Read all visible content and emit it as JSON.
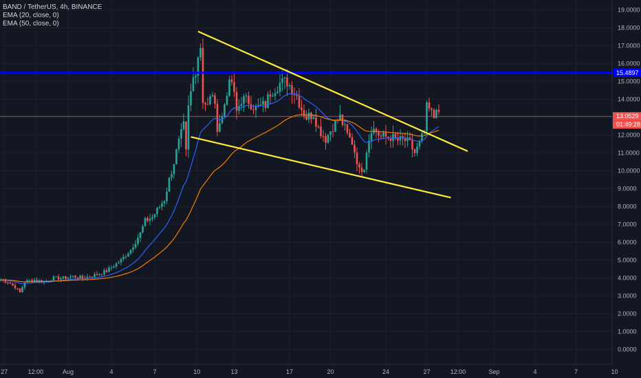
{
  "header": {
    "symbol": "BAND / TetherUS, 4h, BINANCE",
    "indicators": [
      "EMA (20, close, 0)",
      "EMA (50, close, 0)"
    ]
  },
  "price_badges": {
    "level": "15.4897",
    "last": "13.0529",
    "countdown": "01:49:28"
  },
  "colors": {
    "background": "#131722",
    "up": "#26a69a",
    "down": "#ef5350",
    "ema20": "#2962ff",
    "ema50": "#f57c00",
    "trendline": "#ffeb3b",
    "level_line": "#0000ff"
  },
  "chart_data": {
    "type": "candlestick",
    "y_axis": {
      "range": [
        -0.4,
        19.5
      ],
      "tick_labels": [
        "0.0000",
        "1.0000",
        "2.0000",
        "3.0000",
        "4.0000",
        "5.0000",
        "6.0000",
        "7.0000",
        "8.0000",
        "9.0000",
        "10.0000",
        "11.0000",
        "12.0000",
        "13.0000",
        "14.0000",
        "15.0000",
        "16.0000",
        "17.0000",
        "18.0000",
        "19.0000"
      ]
    },
    "x_axis": {
      "tick_labels": [
        "27",
        "12:00",
        "Aug",
        "4",
        "7",
        "10",
        "13",
        "17",
        "20",
        "24",
        "27",
        "12:00",
        "Sep",
        "4",
        "7",
        "10"
      ],
      "tick_index": [
        1.5,
        14.5,
        28,
        46,
        64,
        81.5,
        97,
        120,
        137,
        160,
        177,
        190,
        205,
        222,
        239,
        255
      ]
    },
    "series": [
      {
        "name": "EMA (20, close, 0)",
        "role": "ema20"
      },
      {
        "name": "EMA (50, close, 0)",
        "role": "ema50"
      }
    ],
    "close_path": [
      [
        0,
        3.9
      ],
      [
        3,
        3.8
      ],
      [
        6,
        3.5
      ],
      [
        8,
        3.2
      ],
      [
        10,
        3.8
      ],
      [
        14,
        3.9
      ],
      [
        18,
        3.8
      ],
      [
        22,
        4.0
      ],
      [
        26,
        4.0
      ],
      [
        30,
        4.1
      ],
      [
        34,
        4.0
      ],
      [
        40,
        4.2
      ],
      [
        44,
        4.4
      ],
      [
        46,
        4.6
      ],
      [
        50,
        5.0
      ],
      [
        54,
        5.6
      ],
      [
        58,
        6.5
      ],
      [
        60,
        7.2
      ],
      [
        63,
        7.4
      ],
      [
        66,
        8.0
      ],
      [
        68,
        8.4
      ],
      [
        70,
        9.5
      ],
      [
        72,
        10.5
      ],
      [
        74,
        11.6
      ],
      [
        76,
        12.5
      ],
      [
        77,
        11.0
      ],
      [
        78,
        13.5
      ],
      [
        80,
        15.2
      ],
      [
        81,
        15.7
      ],
      [
        82,
        16.5
      ],
      [
        83,
        17.0
      ],
      [
        84,
        14.0
      ],
      [
        86,
        13.6
      ],
      [
        88,
        14.4
      ],
      [
        90,
        12.5
      ],
      [
        92,
        13.0
      ],
      [
        94,
        14.5
      ],
      [
        96,
        15.0
      ],
      [
        98,
        13.3
      ],
      [
        100,
        14.0
      ],
      [
        103,
        13.9
      ],
      [
        106,
        13.5
      ],
      [
        110,
        13.7
      ],
      [
        112,
        14.4
      ],
      [
        116,
        14.9
      ],
      [
        119,
        15.0
      ],
      [
        121,
        14.6
      ],
      [
        123,
        14.2
      ],
      [
        125,
        13.5
      ],
      [
        127,
        13.0
      ],
      [
        130,
        13.2
      ],
      [
        132,
        12.4
      ],
      [
        135,
        11.8
      ],
      [
        138,
        12.5
      ],
      [
        141,
        13.0
      ],
      [
        144,
        12.0
      ],
      [
        146,
        11.6
      ],
      [
        148,
        10.6
      ],
      [
        149,
        10.0
      ],
      [
        151,
        10.3
      ],
      [
        152,
        11.2
      ],
      [
        154,
        12.4
      ],
      [
        156,
        12.2
      ],
      [
        158,
        11.9
      ],
      [
        162,
        11.9
      ],
      [
        165,
        11.7
      ],
      [
        168,
        11.7
      ],
      [
        170,
        11.5
      ],
      [
        172,
        11.0
      ],
      [
        174,
        11.5
      ],
      [
        176,
        12.2
      ],
      [
        177,
        13.5
      ],
      [
        178,
        13.4
      ],
      [
        180,
        13.0
      ],
      [
        181,
        13.7
      ],
      [
        182,
        13.0
      ]
    ],
    "overlays": {
      "horizontal_level": 15.4897,
      "last_price": 13.0529,
      "trendlines": [
        {
          "from": [
            82,
            17.8
          ],
          "to": [
            194,
            11.1
          ]
        },
        {
          "from": [
            79,
            11.9
          ],
          "to": [
            187,
            8.5
          ]
        }
      ]
    }
  }
}
